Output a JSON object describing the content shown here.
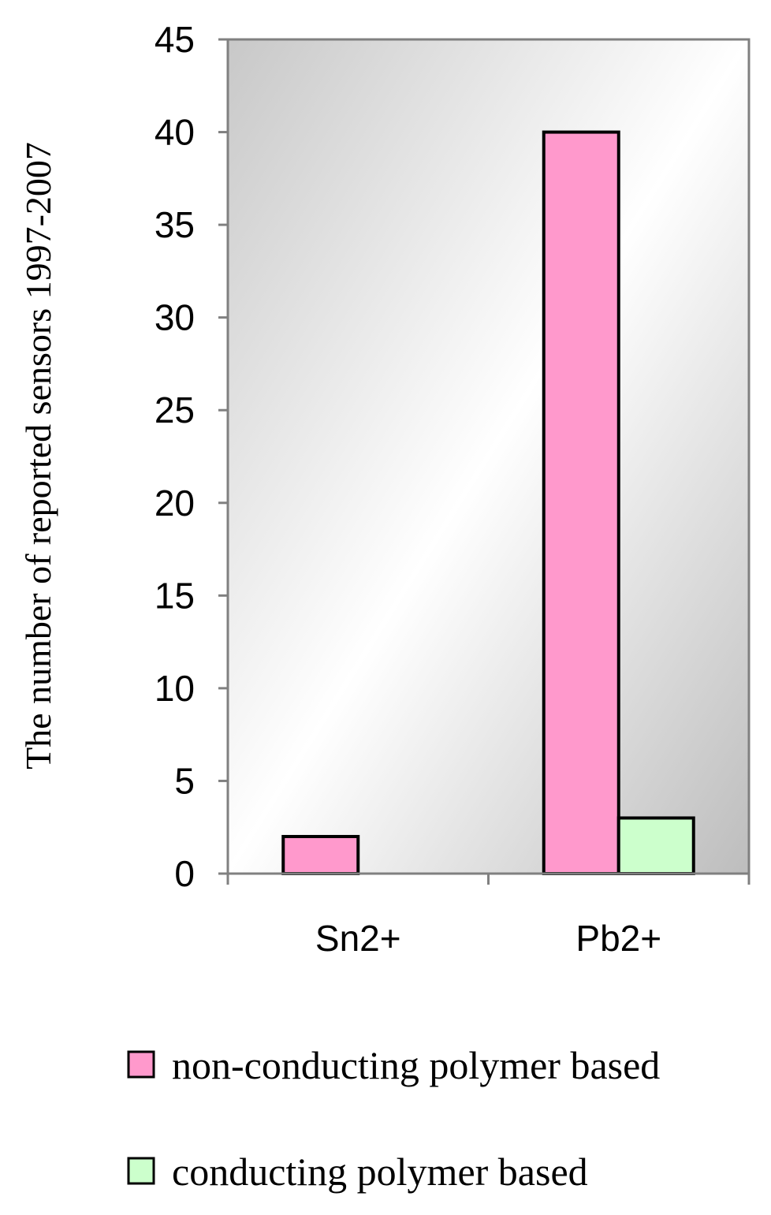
{
  "chart_data": {
    "type": "bar",
    "categories": [
      "Sn2+",
      "Pb2+"
    ],
    "series": [
      {
        "name": "non-conducting polymer based",
        "values": [
          2,
          40
        ],
        "color": "#ff99cc"
      },
      {
        "name": "conducting polymer based",
        "values": [
          0,
          3
        ],
        "color": "#ccffcc"
      }
    ],
    "ylabel": "The number of reported sensors 1997-2007",
    "xlabel": "",
    "ylim": [
      0,
      45
    ],
    "yticks": [
      0,
      5,
      10,
      15,
      20,
      25,
      30,
      35,
      40,
      45
    ],
    "legend_position": "bottom",
    "plot_background": "gradient gray-white",
    "grid": false
  }
}
